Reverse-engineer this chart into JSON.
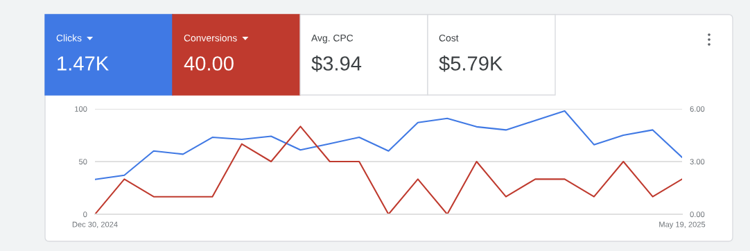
{
  "chart_data": [
    {
      "type": "other",
      "annotations": [
        "Clicks",
        "1.47K",
        "Conversions",
        "40.00",
        "Avg. CPC",
        "$3.94",
        "Cost",
        "$5.79K"
      ],
      "colors": [
        "#4079e4",
        "#bf3a2e",
        "#ffffff",
        "#ffffff"
      ]
    },
    {
      "type": "line",
      "x": [
        "2024-12-30",
        "2025-01-06",
        "2025-01-13",
        "2025-01-20",
        "2025-01-27",
        "2025-02-03",
        "2025-02-10",
        "2025-02-17",
        "2025-02-24",
        "2025-03-03",
        "2025-03-10",
        "2025-03-17",
        "2025-03-24",
        "2025-03-31",
        "2025-04-07",
        "2025-04-14",
        "2025-04-21",
        "2025-04-28",
        "2025-05-05",
        "2025-05-12",
        "2025-05-19"
      ],
      "series": [
        {
          "color": "#4079e4",
          "values": [
            33,
            37,
            60,
            57,
            73,
            71,
            74,
            61,
            67,
            73,
            60,
            87,
            91,
            83,
            80,
            89,
            98,
            66,
            75,
            80,
            54
          ]
        },
        {
          "color": "#bf3a2e",
          "axis": "y2",
          "values": [
            0,
            2,
            1,
            1,
            1,
            4,
            3,
            5,
            3,
            3,
            0,
            2,
            0,
            3,
            1,
            2,
            2,
            1,
            3,
            1,
            2
          ]
        }
      ],
      "xlim": [
        "2024-12-30",
        "2025-05-19"
      ],
      "xticks": [
        {
          "value": "2024-12-30",
          "label": "Dec 30, 2024"
        },
        {
          "value": "2025-05-19",
          "label": "May 19, 2025"
        }
      ],
      "ylim": [
        0,
        100
      ],
      "yticks": [
        0,
        50,
        100
      ],
      "y2lim": [
        0,
        6
      ],
      "y2ticks": [
        {
          "value": 0,
          "label": "0.00"
        },
        {
          "value": 3,
          "label": "3.00"
        },
        {
          "value": 6,
          "label": "6.00"
        }
      ],
      "grid": "y",
      "marker": "none",
      "line_style": "solid"
    }
  ]
}
